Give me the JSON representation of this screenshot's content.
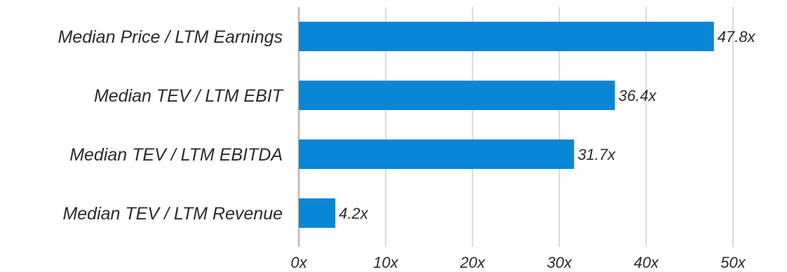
{
  "colors": {
    "bar": "#0a86d6",
    "grid": "#d9d9d9",
    "axis": "#bfbfbf",
    "text": "#2b2b2b"
  },
  "chart_data": {
    "type": "bar",
    "orientation": "horizontal",
    "title": "",
    "xlabel": "",
    "ylabel": "",
    "categories": [
      "Median Price / LTM Earnings",
      "Median TEV / LTM EBIT",
      "Median TEV / LTM EBITDA",
      "Median TEV / LTM Revenue"
    ],
    "values": [
      47.8,
      36.4,
      31.7,
      4.2
    ],
    "value_labels": [
      "47.8x",
      "36.4x",
      "31.7x",
      "4.2x"
    ],
    "xlim": [
      0,
      50
    ],
    "ticks": [
      0,
      10,
      20,
      30,
      40,
      50
    ],
    "tick_labels": [
      "0x",
      "10x",
      "20x",
      "30x",
      "40x",
      "50x"
    ],
    "grid": true,
    "legend": "none"
  }
}
